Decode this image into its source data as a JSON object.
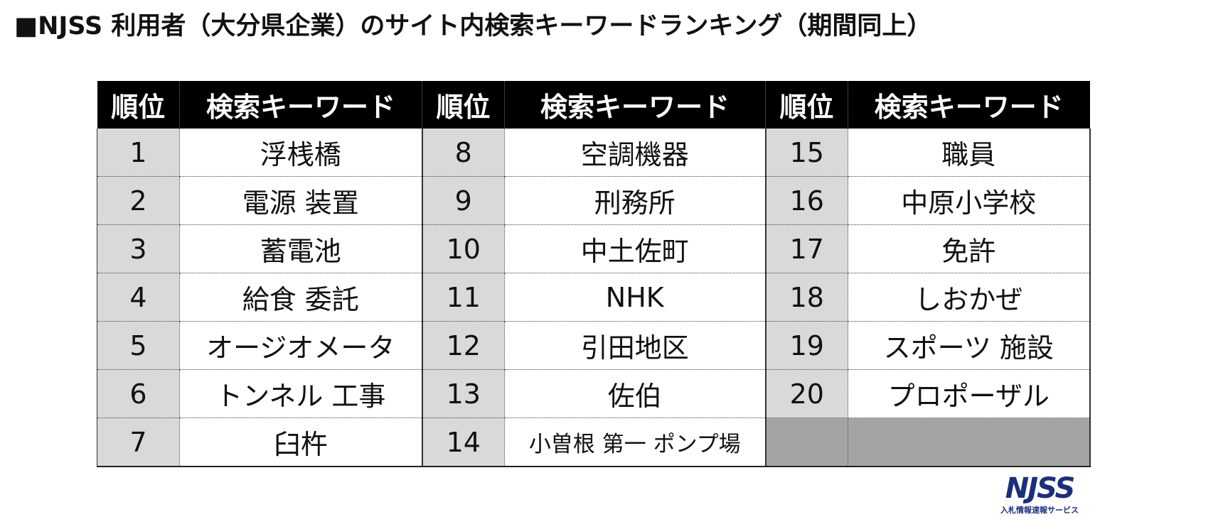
{
  "title": "■NJSS 利用者（大分県企業）のサイト内検索キーワードランキング（期間同上）",
  "headers": {
    "rank": "順位",
    "keyword": "検索キーワード"
  },
  "rows": [
    [
      {
        "rank": "1",
        "kw": "浮桟橋"
      },
      {
        "rank": "8",
        "kw": "空調機器"
      },
      {
        "rank": "15",
        "kw": "職員"
      }
    ],
    [
      {
        "rank": "2",
        "kw": "電源 装置"
      },
      {
        "rank": "9",
        "kw": "刑務所"
      },
      {
        "rank": "16",
        "kw": "中原小学校"
      }
    ],
    [
      {
        "rank": "3",
        "kw": "蓄電池"
      },
      {
        "rank": "10",
        "kw": "中土佐町"
      },
      {
        "rank": "17",
        "kw": "免許"
      }
    ],
    [
      {
        "rank": "4",
        "kw": "給食 委託"
      },
      {
        "rank": "11",
        "kw": "NHK"
      },
      {
        "rank": "18",
        "kw": "しおかぜ"
      }
    ],
    [
      {
        "rank": "5",
        "kw": "オージオメータ"
      },
      {
        "rank": "12",
        "kw": "引田地区"
      },
      {
        "rank": "19",
        "kw": "スポーツ 施設"
      }
    ],
    [
      {
        "rank": "6",
        "kw": "トンネル 工事"
      },
      {
        "rank": "13",
        "kw": "佐伯"
      },
      {
        "rank": "20",
        "kw": "プロポーザル"
      }
    ],
    [
      {
        "rank": "7",
        "kw": "臼杵"
      },
      {
        "rank": "14",
        "kw": "小曽根 第一 ポンプ場"
      },
      {
        "rank": "",
        "kw": ""
      }
    ]
  ],
  "logo": {
    "name": "NJSS",
    "subtitle": "入札情報速報サービス",
    "color": "#1d2f79"
  },
  "colors": {
    "header_bg": "#000000",
    "rank_bg": "#d9d9d9",
    "empty_bg": "#a6a4a3"
  }
}
